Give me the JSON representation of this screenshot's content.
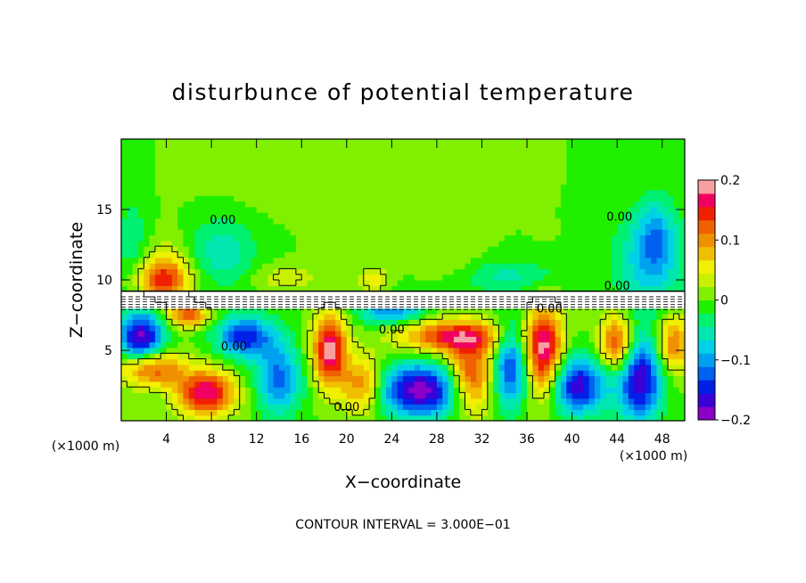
{
  "chart_data": {
    "type": "heatmap",
    "title": "disturbunce of potential temperature",
    "xlabel": "X−coordinate",
    "ylabel": "Z−coordinate",
    "xunit_left": "(×1000 m)",
    "xunit_right": "(×1000 m)",
    "footer": "CONTOUR INTERVAL = 3.000E−01",
    "xlim": [
      0,
      50
    ],
    "ylim": [
      0,
      20
    ],
    "xticks": [
      {
        "value": 4,
        "label": "4"
      },
      {
        "value": 8,
        "label": "8"
      },
      {
        "value": 12,
        "label": "12"
      },
      {
        "value": 16,
        "label": "16"
      },
      {
        "value": 20,
        "label": "20"
      },
      {
        "value": 24,
        "label": "24"
      },
      {
        "value": 28,
        "label": "28"
      },
      {
        "value": 32,
        "label": "32"
      },
      {
        "value": 36,
        "label": "36"
      },
      {
        "value": 40,
        "label": "40"
      },
      {
        "value": 44,
        "label": "44"
      },
      {
        "value": 48,
        "label": "48"
      }
    ],
    "yticks": [
      {
        "value": 5,
        "label": "5"
      },
      {
        "value": 10,
        "label": "10"
      },
      {
        "value": 15,
        "label": "15"
      }
    ],
    "colorbar": {
      "range": [
        -0.2,
        0.2
      ],
      "ticks": [
        {
          "value": 0.2,
          "label": "0.2"
        },
        {
          "value": 0.1,
          "label": "0.1"
        },
        {
          "value": 0,
          "label": "0"
        },
        {
          "value": -0.1,
          "label": "−0.1"
        },
        {
          "value": -0.2,
          "label": "−0.2"
        }
      ],
      "colors": [
        "#8a00c8",
        "#3a00d8",
        "#0020e8",
        "#0060f0",
        "#00a0f0",
        "#00d0e8",
        "#00e8b0",
        "#00f070",
        "#20f000",
        "#80f000",
        "#c8f000",
        "#f0f000",
        "#f0c000",
        "#f09000",
        "#f06000",
        "#f02000",
        "#f00060",
        "#f8a0a0"
      ]
    },
    "contour_labels": [
      {
        "x": 9,
        "y": 14.0,
        "label": "0.00"
      },
      {
        "x": 44.2,
        "y": 14.2,
        "label": "0.00"
      },
      {
        "x": 44,
        "y": 9.3,
        "label": "0.00"
      },
      {
        "x": 10,
        "y": 5.0,
        "label": "0.00"
      },
      {
        "x": 24,
        "y": 6.2,
        "label": "0.00"
      },
      {
        "x": 38,
        "y": 7.7,
        "label": "0.00"
      },
      {
        "x": 20,
        "y": 0.7,
        "label": "0.00"
      }
    ],
    "field_blobs": [
      {
        "x": 3.6,
        "y": 10.0,
        "rx": 2.5,
        "ry": 1.4,
        "v": 0.11
      },
      {
        "x": 4.0,
        "y": 10.8,
        "rx": 2.0,
        "ry": 2.3,
        "v": 0.05
      },
      {
        "x": 9.0,
        "y": 12.0,
        "rx": 3.0,
        "ry": 2.5,
        "v": -0.06
      },
      {
        "x": 14.5,
        "y": 10.2,
        "rx": 3.0,
        "ry": 0.9,
        "v": 0.04
      },
      {
        "x": 22.5,
        "y": 10.0,
        "rx": 1.2,
        "ry": 0.8,
        "v": 0.06
      },
      {
        "x": 34.0,
        "y": 10.3,
        "rx": 6.0,
        "ry": 1.2,
        "v": -0.05
      },
      {
        "x": 47.0,
        "y": 11.5,
        "rx": 3.0,
        "ry": 3.5,
        "v": -0.09
      },
      {
        "x": 47.5,
        "y": 13.5,
        "rx": 1.5,
        "ry": 2.5,
        "v": -0.05
      },
      {
        "x": 1.0,
        "y": 12.5,
        "rx": 1.5,
        "ry": 3.5,
        "v": -0.04
      },
      {
        "x": 21.0,
        "y": 13.0,
        "rx": 2.5,
        "ry": 3.0,
        "v": 0.02
      },
      {
        "x": 29.0,
        "y": 11.0,
        "rx": 3.0,
        "ry": 1.5,
        "v": 0.03
      },
      {
        "x": 16.0,
        "y": 16.5,
        "rx": 9.0,
        "ry": 2.0,
        "v": 0.01
      },
      {
        "x": 1.8,
        "y": 5.8,
        "rx": 2.0,
        "ry": 2.0,
        "v": -0.19
      },
      {
        "x": 2.5,
        "y": 3.8,
        "rx": 2.8,
        "ry": 1.3,
        "v": 0.16
      },
      {
        "x": 7.5,
        "y": 2.0,
        "rx": 2.5,
        "ry": 1.6,
        "v": 0.18
      },
      {
        "x": 11.0,
        "y": 6.0,
        "rx": 2.5,
        "ry": 1.5,
        "v": -0.15
      },
      {
        "x": 14.0,
        "y": 3.0,
        "rx": 2.0,
        "ry": 2.5,
        "v": -0.12
      },
      {
        "x": 18.5,
        "y": 5.0,
        "rx": 1.5,
        "ry": 2.5,
        "v": 0.19
      },
      {
        "x": 21.5,
        "y": 2.5,
        "rx": 2.0,
        "ry": 2.0,
        "v": 0.14
      },
      {
        "x": 26.5,
        "y": 2.2,
        "rx": 4.5,
        "ry": 1.9,
        "v": -0.19
      },
      {
        "x": 29.5,
        "y": 6.0,
        "rx": 4.5,
        "ry": 1.2,
        "v": 0.16
      },
      {
        "x": 31.0,
        "y": 3.0,
        "rx": 2.0,
        "ry": 2.5,
        "v": 0.17
      },
      {
        "x": 34.5,
        "y": 4.0,
        "rx": 1.5,
        "ry": 3.0,
        "v": -0.14
      },
      {
        "x": 37.5,
        "y": 5.0,
        "rx": 1.6,
        "ry": 3.2,
        "v": 0.19
      },
      {
        "x": 40.5,
        "y": 2.5,
        "rx": 2.5,
        "ry": 2.0,
        "v": -0.17
      },
      {
        "x": 44.0,
        "y": 5.5,
        "rx": 1.5,
        "ry": 2.0,
        "v": 0.15
      },
      {
        "x": 46.0,
        "y": 3.0,
        "rx": 2.0,
        "ry": 3.0,
        "v": -0.18
      },
      {
        "x": 49.0,
        "y": 5.5,
        "rx": 1.5,
        "ry": 2.0,
        "v": 0.12
      },
      {
        "x": 24.0,
        "y": 7.8,
        "rx": 3.0,
        "ry": 0.9,
        "v": -0.11
      },
      {
        "x": 6.0,
        "y": 7.5,
        "rx": 1.8,
        "ry": 0.8,
        "v": 0.13
      }
    ]
  }
}
